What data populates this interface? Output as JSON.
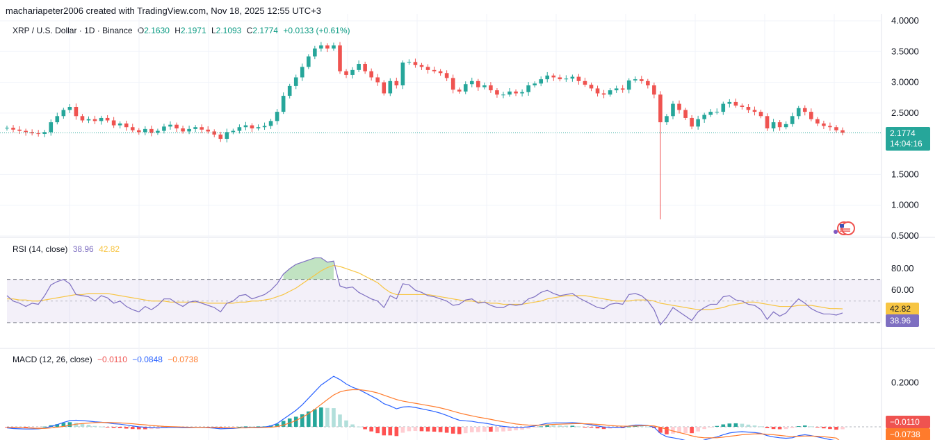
{
  "header": {
    "credit": "machariapeter2006 created with TradingView.com, Nov 18, 2025 12:55 UTC+3"
  },
  "legend": {
    "symbol": "XRP / U.S. Dollar · 1D · Binance",
    "o_key": "O",
    "o_val": "2.1630",
    "h_key": "H",
    "h_val": "2.1971",
    "l_key": "L",
    "l_val": "2.1093",
    "c_key": "C",
    "c_val": "2.1774",
    "change": "+0.0133 (+0.61%)"
  },
  "rsi_legend": {
    "label": "RSI (14, close)",
    "value": "38.96",
    "ma": "42.82"
  },
  "macd_legend": {
    "label": "MACD (12, 26, close)",
    "hist": "−0.0110",
    "macd": "−0.0848",
    "signal": "−0.0738"
  },
  "tags": {
    "price": "2.1774",
    "countdown": "14:04:16",
    "rsi_ma": "42.82",
    "rsi": "38.96",
    "macd_hist": "−0.0110",
    "macd_signal": "−0.0738"
  },
  "colors": {
    "up": "#26a69a",
    "down": "#ef5350",
    "rsi": "#7e6fc1",
    "rsi_ma": "#f7c543",
    "macd": "#2962ff",
    "signal": "#ff7b2c",
    "band": "#7e57c2"
  },
  "chart_data": [
    {
      "type": "candlestick",
      "title": "XRP / U.S. Dollar · 1D · Binance",
      "ylim": [
        0.5,
        4.0
      ],
      "y_ticks": [
        "4.0000",
        "3.5000",
        "3.0000",
        "2.5000",
        "1.5000",
        "1.0000",
        "0.5000"
      ],
      "last_price": 2.1774,
      "close_path": [
        2.26,
        2.23,
        2.21,
        2.19,
        2.17,
        2.16,
        2.19,
        2.35,
        2.45,
        2.55,
        2.6,
        2.45,
        2.38,
        2.4,
        2.37,
        2.42,
        2.38,
        2.3,
        2.33,
        2.27,
        2.22,
        2.19,
        2.24,
        2.18,
        2.21,
        2.28,
        2.31,
        2.25,
        2.2,
        2.24,
        2.27,
        2.23,
        2.2,
        2.15,
        2.08,
        2.19,
        2.21,
        2.27,
        2.3,
        2.25,
        2.27,
        2.29,
        2.37,
        2.52,
        2.78,
        2.94,
        3.08,
        3.25,
        3.42,
        3.55,
        3.6,
        3.55,
        3.6,
        3.18,
        3.12,
        3.2,
        3.3,
        3.18,
        3.08,
        3.0,
        2.82,
        3.02,
        2.95,
        3.32,
        3.33,
        3.28,
        3.25,
        3.2,
        3.18,
        3.15,
        3.07,
        2.88,
        2.85,
        2.97,
        3.02,
        2.92,
        2.95,
        2.87,
        2.8,
        2.8,
        2.85,
        2.82,
        2.84,
        2.95,
        2.98,
        3.05,
        3.11,
        3.08,
        3.05,
        3.06,
        3.09,
        3.02,
        2.96,
        2.9,
        2.82,
        2.8,
        2.87,
        2.9,
        2.88,
        3.03,
        3.05,
        3.02,
        2.95,
        2.8,
        2.35,
        2.45,
        2.65,
        2.55,
        2.42,
        2.28,
        2.4,
        2.47,
        2.52,
        2.52,
        2.65,
        2.68,
        2.62,
        2.6,
        2.55,
        2.52,
        2.45,
        2.25,
        2.35,
        2.27,
        2.32,
        2.45,
        2.58,
        2.52,
        2.4,
        2.33,
        2.29,
        2.27,
        2.22,
        2.18
      ],
      "spike_low": 0.77
    },
    {
      "type": "line",
      "name": "RSI (14, close)",
      "ylim": [
        10,
        100
      ],
      "y_ticks": [
        "80.00",
        "60.00"
      ],
      "bands": [
        30,
        50,
        70
      ],
      "rsi": [
        55,
        50,
        48,
        45,
        48,
        47,
        55,
        65,
        68,
        70,
        66,
        56,
        55,
        54,
        50,
        55,
        53,
        48,
        50,
        45,
        42,
        40,
        45,
        42,
        46,
        52,
        52,
        48,
        45,
        49,
        50,
        48,
        46,
        44,
        40,
        48,
        50,
        55,
        56,
        52,
        54,
        56,
        60,
        66,
        75,
        80,
        84,
        86,
        88,
        90,
        90,
        86,
        87,
        64,
        62,
        63,
        58,
        55,
        52,
        50,
        44,
        55,
        52,
        66,
        65,
        60,
        58,
        55,
        54,
        52,
        50,
        46,
        47,
        51,
        52,
        48,
        49,
        46,
        44,
        44,
        47,
        46,
        47,
        52,
        54,
        58,
        60,
        57,
        55,
        56,
        57,
        53,
        50,
        47,
        44,
        43,
        47,
        48,
        47,
        56,
        57,
        55,
        50,
        42,
        28,
        35,
        44,
        40,
        36,
        32,
        40,
        44,
        47,
        47,
        54,
        55,
        51,
        50,
        47,
        46,
        42,
        33,
        40,
        36,
        39,
        46,
        52,
        48,
        43,
        40,
        38,
        38,
        37,
        39
      ],
      "rsi_ma": [
        52,
        52,
        51,
        51,
        50,
        50,
        51,
        52,
        53,
        54,
        55,
        56,
        56,
        57,
        57,
        57,
        57,
        56,
        55,
        54,
        53,
        52,
        51,
        50,
        50,
        50,
        49,
        49,
        49,
        49,
        49,
        49,
        48,
        48,
        48,
        48,
        48,
        49,
        49,
        50,
        50,
        51,
        52,
        54,
        56,
        59,
        62,
        66,
        70,
        74,
        78,
        81,
        83,
        82,
        80,
        78,
        76,
        73,
        70,
        67,
        62,
        58,
        56,
        56,
        56,
        56,
        56,
        56,
        55,
        54,
        53,
        52,
        51,
        50,
        50,
        49,
        49,
        48,
        48,
        47,
        47,
        47,
        47,
        48,
        49,
        50,
        52,
        53,
        54,
        55,
        55,
        55,
        55,
        54,
        53,
        52,
        51,
        50,
        50,
        50,
        51,
        51,
        51,
        50,
        48,
        47,
        46,
        45,
        44,
        43,
        42,
        42,
        42,
        43,
        44,
        46,
        47,
        48,
        49,
        49,
        48,
        47,
        46,
        45,
        45,
        45,
        46,
        46,
        46,
        45,
        44,
        43,
        43,
        42.8
      ]
    },
    {
      "type": "line",
      "name": "MACD (12, 26, close)",
      "ylim": [
        -0.06,
        0.3
      ],
      "y_ticks": [
        "0.2000"
      ],
      "macd": [
        -0.005,
        -0.008,
        -0.009,
        -0.01,
        -0.01,
        -0.009,
        -0.006,
        0.002,
        0.01,
        0.02,
        0.028,
        0.03,
        0.028,
        0.026,
        0.023,
        0.021,
        0.018,
        0.014,
        0.012,
        0.008,
        0.004,
        0.0,
        -0.002,
        -0.004,
        -0.005,
        -0.004,
        -0.003,
        -0.003,
        -0.004,
        -0.004,
        -0.003,
        -0.003,
        -0.004,
        -0.006,
        -0.009,
        -0.008,
        -0.007,
        -0.005,
        -0.003,
        -0.003,
        -0.002,
        -0.001,
        0.004,
        0.015,
        0.035,
        0.055,
        0.075,
        0.1,
        0.13,
        0.16,
        0.19,
        0.21,
        0.23,
        0.215,
        0.195,
        0.18,
        0.17,
        0.155,
        0.14,
        0.125,
        0.105,
        0.095,
        0.082,
        0.09,
        0.092,
        0.088,
        0.082,
        0.076,
        0.07,
        0.062,
        0.052,
        0.04,
        0.03,
        0.027,
        0.025,
        0.02,
        0.017,
        0.012,
        0.006,
        0.002,
        -0.001,
        -0.003,
        -0.003,
        0.0,
        0.004,
        0.01,
        0.016,
        0.018,
        0.018,
        0.018,
        0.019,
        0.017,
        0.013,
        0.009,
        0.004,
        -0.001,
        -0.002,
        -0.002,
        -0.003,
        0.004,
        0.008,
        0.008,
        0.006,
        -0.002,
        -0.03,
        -0.045,
        -0.05,
        -0.055,
        -0.062,
        -0.07,
        -0.068,
        -0.06,
        -0.052,
        -0.046,
        -0.036,
        -0.028,
        -0.024,
        -0.022,
        -0.024,
        -0.026,
        -0.03,
        -0.04,
        -0.046,
        -0.05,
        -0.052,
        -0.05,
        -0.04,
        -0.036,
        -0.04,
        -0.046,
        -0.052,
        -0.058,
        -0.064,
        -0.085
      ],
      "signal": [
        -0.002,
        -0.003,
        -0.004,
        -0.005,
        -0.006,
        -0.007,
        -0.007,
        -0.005,
        -0.002,
        0.002,
        0.007,
        0.012,
        0.015,
        0.017,
        0.019,
        0.02,
        0.02,
        0.019,
        0.018,
        0.016,
        0.014,
        0.011,
        0.009,
        0.006,
        0.004,
        0.002,
        0.001,
        0.0,
        -0.001,
        -0.002,
        -0.002,
        -0.002,
        -0.003,
        -0.003,
        -0.004,
        -0.005,
        -0.005,
        -0.005,
        -0.005,
        -0.004,
        -0.004,
        -0.003,
        -0.002,
        0.001,
        0.008,
        0.017,
        0.029,
        0.043,
        0.06,
        0.08,
        0.102,
        0.124,
        0.145,
        0.159,
        0.166,
        0.169,
        0.169,
        0.166,
        0.161,
        0.154,
        0.144,
        0.134,
        0.124,
        0.117,
        0.112,
        0.107,
        0.102,
        0.097,
        0.092,
        0.086,
        0.079,
        0.071,
        0.063,
        0.056,
        0.05,
        0.044,
        0.039,
        0.034,
        0.028,
        0.023,
        0.018,
        0.013,
        0.01,
        0.008,
        0.007,
        0.008,
        0.009,
        0.011,
        0.012,
        0.013,
        0.014,
        0.015,
        0.014,
        0.013,
        0.011,
        0.009,
        0.006,
        0.004,
        0.003,
        0.003,
        0.004,
        0.005,
        0.005,
        0.004,
        -0.003,
        -0.011,
        -0.019,
        -0.026,
        -0.033,
        -0.041,
        -0.047,
        -0.05,
        -0.05,
        -0.05,
        -0.047,
        -0.043,
        -0.04,
        -0.036,
        -0.034,
        -0.032,
        -0.032,
        -0.034,
        -0.036,
        -0.039,
        -0.042,
        -0.044,
        -0.043,
        -0.042,
        -0.042,
        -0.043,
        -0.045,
        -0.048,
        -0.051,
        -0.074
      ]
    }
  ]
}
